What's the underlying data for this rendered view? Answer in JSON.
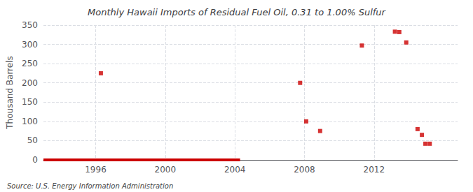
{
  "chart_data": {
    "type": "scatter",
    "title": "Monthly Hawaii Imports of Residual Fuel Oil, 0.31 to 1.00% Sulfur",
    "ylabel": "Thousand Barrels",
    "annotation": "Source: U.S. Energy Information Administration",
    "xlim": [
      1993.0,
      2016.8
    ],
    "ylim": [
      0,
      350
    ],
    "xticks": [
      1996,
      2000,
      2004,
      2008,
      2012
    ],
    "yticks": [
      0,
      50,
      100,
      150,
      200,
      250,
      300,
      350
    ],
    "grid": true,
    "series": [
      {
        "type": "scatter",
        "marker": "square",
        "color": "#cc0000",
        "x": [
          1996.3,
          2007.75,
          2008.1,
          2008.9,
          2011.3,
          2013.2,
          2013.45,
          2013.85,
          2014.5,
          2014.75,
          2014.95,
          2015.2
        ],
        "values": [
          225,
          200,
          100,
          75,
          297,
          333,
          332,
          305,
          80,
          65,
          42,
          42
        ]
      },
      {
        "type": "line",
        "line_style": "solid",
        "color": "#cc0000",
        "x": [
          1993.0,
          2004.3
        ],
        "values": [
          0,
          0
        ]
      }
    ]
  }
}
